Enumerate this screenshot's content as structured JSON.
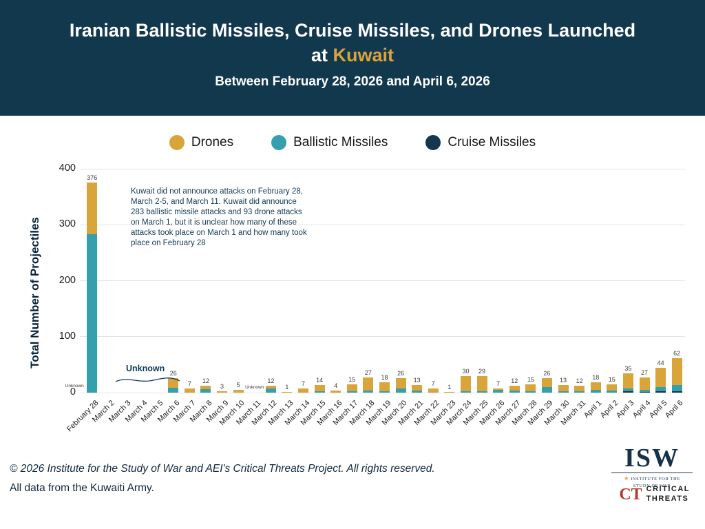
{
  "header": {
    "title_line1": "Iranian Ballistic Missiles, Cruise Missiles, and Drones Launched",
    "title_line2_prefix": "at ",
    "title_highlight": "Kuwait",
    "subtitle": "Between February 28, 2026 and April 6, 2026",
    "bg_color": "#12384e",
    "highlight_color": "#d9a43a"
  },
  "legend": [
    {
      "label": "Drones",
      "color": "#d9a43a"
    },
    {
      "label": "Ballistic Missiles",
      "color": "#34a0ae"
    },
    {
      "label": "Cruise Missiles",
      "color": "#14374f"
    }
  ],
  "unknown_label": "Unknown",
  "note": {
    "text": "Kuwait did not announce attacks on February 28, March 2-5, and March 11. Kuwait did announce 283 ballistic missile attacks and 93 drone attacks on March 1, but it is unclear how many of these attacks took place on March 1 and how many took place on February 28"
  },
  "chart_data": {
    "type": "bar",
    "stacked": true,
    "title": "Iranian Ballistic Missiles, Cruise Missiles, and Drones Launched at Kuwait",
    "subtitle": "Between February 28, 2026 and April 6, 2026",
    "ylabel": "Total Number of Projectiles",
    "xlabel": "",
    "ylim": [
      0,
      400
    ],
    "yticks": [
      0,
      100,
      200,
      300,
      400
    ],
    "grid": true,
    "legend_position": "top",
    "colors": {
      "drones": "#d9a43a",
      "ballistic": "#34a0ae",
      "cruise": "#14374f"
    },
    "series_order": [
      "cruise",
      "ballistic",
      "drones"
    ],
    "bars": [
      {
        "label": "February 28",
        "total": 376,
        "drones": 93,
        "ballistic": 283,
        "cruise": 0,
        "tiny": "left"
      },
      {
        "label": "March 2",
        "unknown": true
      },
      {
        "label": "March 3",
        "unknown": true
      },
      {
        "label": "March 4",
        "unknown": true
      },
      {
        "label": "March 5",
        "unknown": true
      },
      {
        "label": "March 6",
        "total": 26,
        "drones": 17,
        "ballistic": 9,
        "cruise": 0
      },
      {
        "label": "March 7",
        "total": 7,
        "drones": 7,
        "ballistic": 0,
        "cruise": 0
      },
      {
        "label": "March 8",
        "total": 12,
        "drones": 6,
        "ballistic": 6,
        "cruise": 0
      },
      {
        "label": "March 9",
        "total": 3,
        "drones": 3,
        "ballistic": 0,
        "cruise": 0
      },
      {
        "label": "March 10",
        "total": 5,
        "drones": 5,
        "ballistic": 0,
        "cruise": 0
      },
      {
        "label": "March 11",
        "unknown": true,
        "tiny": "bottom"
      },
      {
        "label": "March 12",
        "total": 12,
        "drones": 5,
        "ballistic": 7,
        "cruise": 0
      },
      {
        "label": "March 13",
        "total": 1,
        "drones": 1,
        "ballistic": 0,
        "cruise": 0
      },
      {
        "label": "March 14",
        "total": 7,
        "drones": 7,
        "ballistic": 0,
        "cruise": 0
      },
      {
        "label": "March 15",
        "total": 14,
        "drones": 12,
        "ballistic": 2,
        "cruise": 0
      },
      {
        "label": "March 16",
        "total": 4,
        "drones": 4,
        "ballistic": 0,
        "cruise": 0
      },
      {
        "label": "March 17",
        "total": 15,
        "drones": 12,
        "ballistic": 3,
        "cruise": 0
      },
      {
        "label": "March 18",
        "total": 27,
        "drones": 23,
        "ballistic": 4,
        "cruise": 0
      },
      {
        "label": "March 19",
        "total": 18,
        "drones": 15,
        "ballistic": 3,
        "cruise": 0
      },
      {
        "label": "March 20",
        "total": 26,
        "drones": 18,
        "ballistic": 8,
        "cruise": 0
      },
      {
        "label": "March 21",
        "total": 13,
        "drones": 9,
        "ballistic": 4,
        "cruise": 0
      },
      {
        "label": "March 22",
        "total": 7,
        "drones": 7,
        "ballistic": 0,
        "cruise": 0
      },
      {
        "label": "March 23",
        "total": 1,
        "drones": 1,
        "ballistic": 0,
        "cruise": 0
      },
      {
        "label": "March 24",
        "total": 30,
        "drones": 27,
        "ballistic": 3,
        "cruise": 0
      },
      {
        "label": "March 25",
        "total": 29,
        "drones": 26,
        "ballistic": 3,
        "cruise": 0
      },
      {
        "label": "March 26",
        "total": 7,
        "drones": 2,
        "ballistic": 5,
        "cruise": 0
      },
      {
        "label": "March 27",
        "total": 12,
        "drones": 8,
        "ballistic": 4,
        "cruise": 0
      },
      {
        "label": "March 28",
        "total": 15,
        "drones": 12,
        "ballistic": 3,
        "cruise": 0
      },
      {
        "label": "March 29",
        "total": 26,
        "drones": 16,
        "ballistic": 10,
        "cruise": 0
      },
      {
        "label": "March 30",
        "total": 13,
        "drones": 10,
        "ballistic": 3,
        "cruise": 0
      },
      {
        "label": "March 31",
        "total": 12,
        "drones": 10,
        "ballistic": 2,
        "cruise": 0
      },
      {
        "label": "April 1",
        "total": 18,
        "drones": 13,
        "ballistic": 5,
        "cruise": 0
      },
      {
        "label": "April 2",
        "total": 15,
        "drones": 11,
        "ballistic": 4,
        "cruise": 0
      },
      {
        "label": "April 3",
        "total": 35,
        "drones": 28,
        "ballistic": 5,
        "cruise": 2
      },
      {
        "label": "April 4",
        "total": 27,
        "drones": 22,
        "ballistic": 4,
        "cruise": 1
      },
      {
        "label": "April 5",
        "total": 44,
        "drones": 34,
        "ballistic": 8,
        "cruise": 2
      },
      {
        "label": "April 6",
        "total": 62,
        "drones": 48,
        "ballistic": 12,
        "cruise": 2
      }
    ]
  },
  "footer": {
    "copyright": "© 2026 Institute for the Study of War and AEI's Critical Threats Project. All rights reserved.",
    "source": "All data from the Kuwaiti Army."
  },
  "logos": {
    "isw_text": "ISW",
    "isw_sub1": "INSTITUTE FOR THE",
    "isw_sub2": "STUDY OF WAR",
    "ct_abbr": "CT",
    "ct_word1": "CRITICAL",
    "ct_word2": "THREATS"
  }
}
